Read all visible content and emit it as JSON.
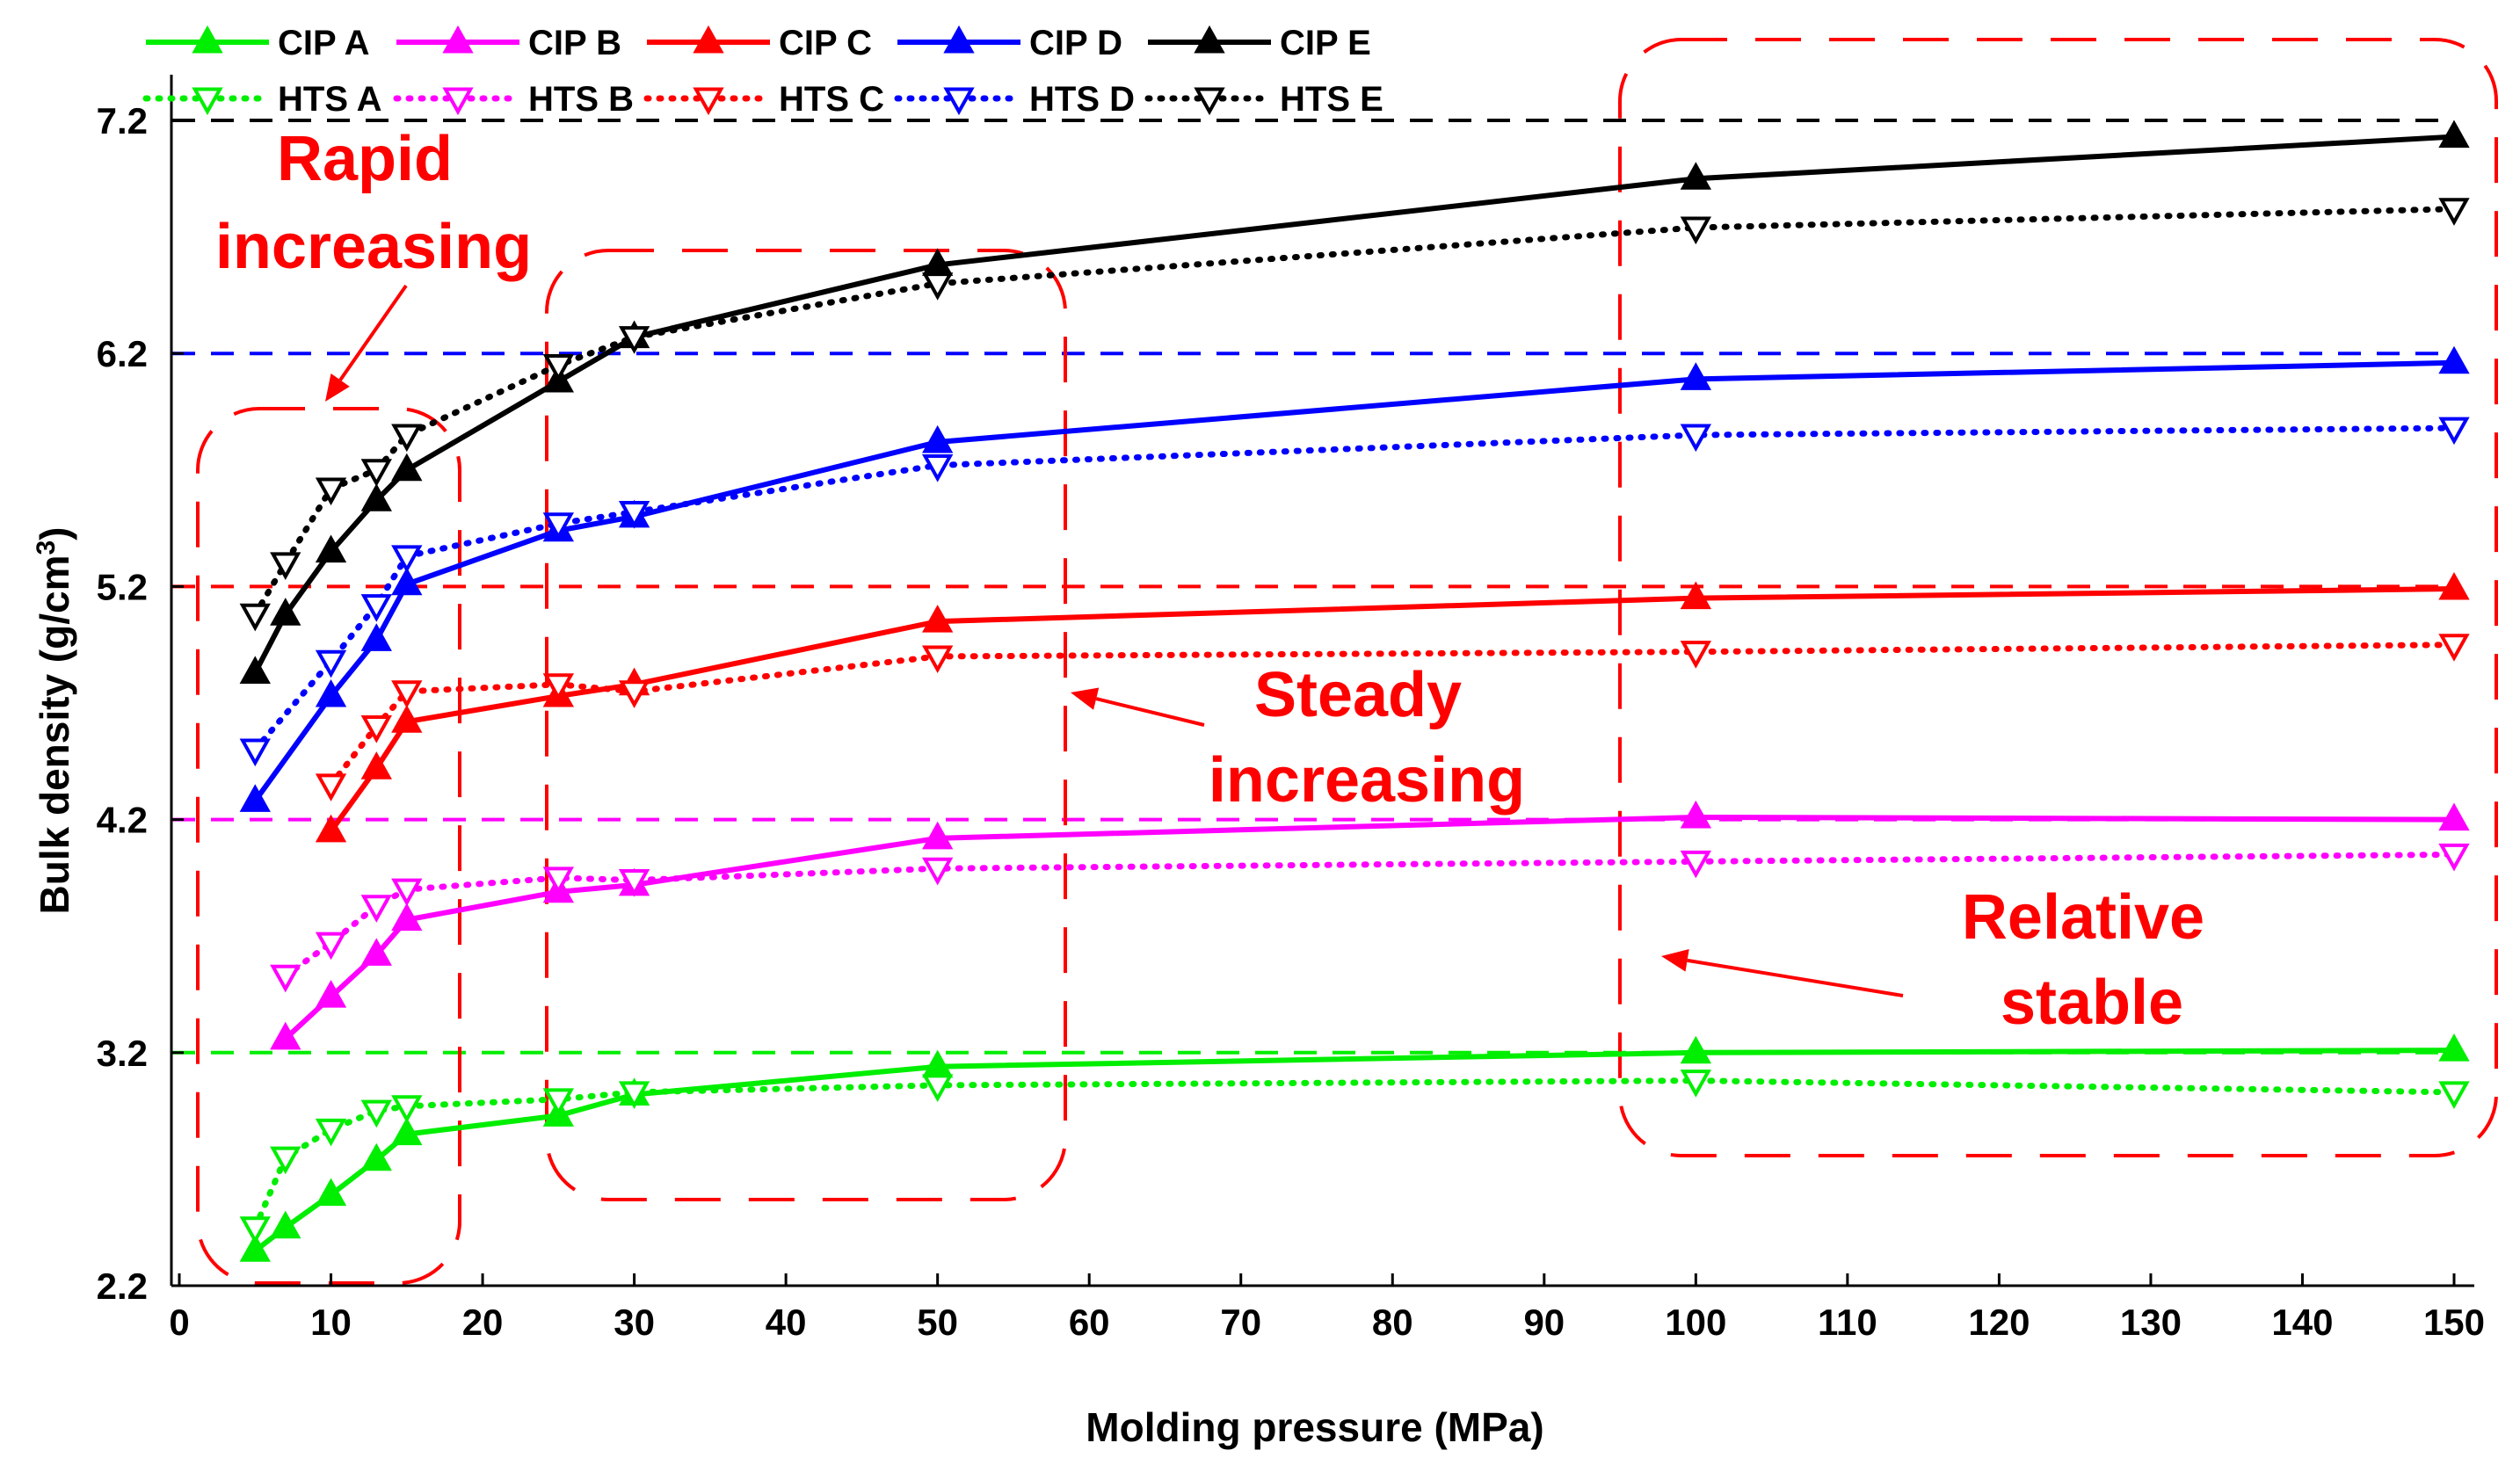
{
  "chart_data": {
    "type": "line",
    "xlabel": "Molding pressure (MPa)",
    "ylabel": "Bulk density (g/cm",
    "ylabel_sup": "3",
    "ylabel_end": ")",
    "xlim": [
      0,
      150
    ],
    "ylim": [
      2.2,
      7.2
    ],
    "xticks": [
      0,
      10,
      20,
      30,
      40,
      50,
      60,
      70,
      80,
      90,
      100,
      110,
      120,
      130,
      140,
      150
    ],
    "yticks": [
      2.2,
      3.2,
      4.2,
      5.2,
      6.2,
      7.2
    ],
    "ytick_labels": [
      "2.2",
      "3.2",
      "4.2",
      "5.2",
      "6.2",
      "7.2"
    ],
    "reference_lines": [
      {
        "y": 3.2,
        "color": "#00ee00"
      },
      {
        "y": 4.2,
        "color": "#ff00ff"
      },
      {
        "y": 5.2,
        "color": "#ff0000"
      },
      {
        "y": 6.2,
        "color": "#0000ff"
      },
      {
        "y": 7.2,
        "color": "#000000"
      }
    ],
    "series": [
      {
        "name": "CIP  A",
        "color": "#00ee00",
        "style": "solid",
        "marker": "up",
        "x": [
          5,
          7,
          10,
          13,
          15,
          25,
          30,
          50,
          100,
          150
        ],
        "y": [
          2.35,
          2.45,
          2.59,
          2.74,
          2.85,
          2.93,
          3.02,
          3.14,
          3.2,
          3.21
        ]
      },
      {
        "name": "HTS A",
        "color": "#00ee00",
        "style": "dotted",
        "marker": "down",
        "x": [
          5,
          7,
          10,
          13,
          15,
          25,
          30,
          50,
          100,
          150
        ],
        "y": [
          2.45,
          2.75,
          2.87,
          2.95,
          2.97,
          3.0,
          3.03,
          3.06,
          3.08,
          3.03
        ]
      },
      {
        "name": "CIP  B",
        "color": "#ff00ff",
        "style": "solid",
        "marker": "up",
        "x": [
          7,
          10,
          13,
          15,
          25,
          30,
          50,
          100,
          150
        ],
        "y": [
          3.26,
          3.44,
          3.62,
          3.77,
          3.89,
          3.92,
          4.12,
          4.21,
          4.2
        ]
      },
      {
        "name": "HTS B",
        "color": "#ff00ff",
        "style": "dotted",
        "marker": "down",
        "x": [
          7,
          10,
          13,
          15,
          25,
          30,
          50,
          100,
          150
        ],
        "y": [
          3.53,
          3.67,
          3.83,
          3.9,
          3.95,
          3.94,
          3.99,
          4.02,
          4.05
        ]
      },
      {
        "name": "CIP  C",
        "color": "#ff0000",
        "style": "solid",
        "marker": "up",
        "x": [
          10,
          13,
          15,
          25,
          30,
          50,
          100,
          150
        ],
        "y": [
          4.15,
          4.42,
          4.62,
          4.73,
          4.78,
          5.05,
          5.15,
          5.19
        ]
      },
      {
        "name": "HTS C",
        "color": "#ff0000",
        "style": "dotted",
        "marker": "down",
        "x": [
          10,
          13,
          15,
          25,
          30,
          50,
          100,
          150
        ],
        "y": [
          4.35,
          4.6,
          4.75,
          4.78,
          4.75,
          4.9,
          4.92,
          4.95
        ]
      },
      {
        "name": "CIP  D",
        "color": "#0000ff",
        "style": "solid",
        "marker": "up",
        "x": [
          5,
          10,
          13,
          15,
          25,
          30,
          50,
          100,
          150
        ],
        "y": [
          4.28,
          4.73,
          4.97,
          5.21,
          5.44,
          5.5,
          5.82,
          6.09,
          6.16
        ]
      },
      {
        "name": "HTS D",
        "color": "#0000ff",
        "style": "dotted",
        "marker": "down",
        "x": [
          5,
          10,
          13,
          15,
          25,
          30,
          50,
          100,
          150
        ],
        "y": [
          4.5,
          4.88,
          5.12,
          5.33,
          5.47,
          5.52,
          5.72,
          5.85,
          5.88
        ]
      },
      {
        "name": "CIP  E",
        "color": "#000000",
        "style": "solid",
        "marker": "up",
        "x": [
          5,
          7,
          10,
          13,
          15,
          25,
          30,
          50,
          100,
          150
        ],
        "y": [
          4.83,
          5.08,
          5.35,
          5.57,
          5.7,
          6.08,
          6.27,
          6.58,
          6.95,
          7.13
        ]
      },
      {
        "name": "HTS E",
        "color": "#000000",
        "style": "dotted",
        "marker": "down",
        "x": [
          5,
          7,
          10,
          13,
          15,
          25,
          30,
          50,
          100,
          150
        ],
        "y": [
          5.08,
          5.3,
          5.62,
          5.7,
          5.85,
          6.15,
          6.27,
          6.5,
          6.74,
          6.82
        ]
      }
    ],
    "legend": {
      "placement": "top-left",
      "rows": [
        [
          "CIP  A",
          "CIP  B",
          "CIP  C",
          "CIP  D",
          "CIP  E"
        ],
        [
          "HTS A",
          "HTS B",
          "HTS C",
          "HTS D",
          "HTS E"
        ]
      ]
    },
    "annotations": [
      {
        "lines": [
          "Rapid",
          "increasing"
        ]
      },
      {
        "lines": [
          "Steady",
          "increasing"
        ]
      },
      {
        "lines": [
          "Relative",
          "stable"
        ]
      }
    ],
    "region_color": "#ff0000"
  }
}
